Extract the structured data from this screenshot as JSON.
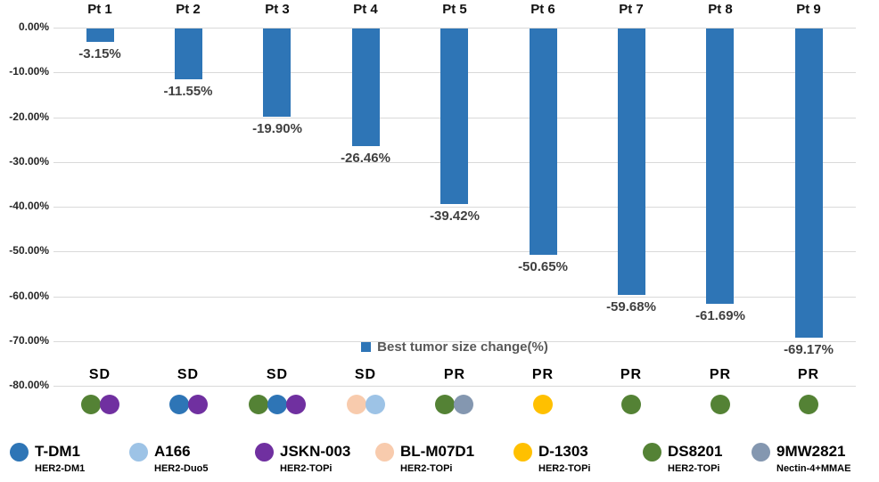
{
  "chart_data": {
    "type": "bar",
    "title": "Best tumor size change(%)",
    "bar_color": "#2E75B6",
    "gridline_color": "#d9d9d9",
    "ylim": [
      0,
      -80
    ],
    "ytick_labels": [
      "0.00%",
      "-10.00%",
      "-20.00%",
      "-30.00%",
      "-40.00%",
      "-50.00%",
      "-60.00%",
      "-70.00%",
      "-80.00%"
    ],
    "categories": [
      "Pt 1",
      "Pt 2",
      "Pt 3",
      "Pt 4",
      "Pt 5",
      "Pt 6",
      "Pt 7",
      "Pt 8",
      "Pt 9"
    ],
    "series": [
      {
        "name": "Best tumor size change(%)",
        "values": [
          -3.15,
          -11.55,
          -19.9,
          -26.46,
          -39.42,
          -50.65,
          -59.68,
          -61.69,
          -69.17
        ],
        "labels": [
          "-3.15%",
          "-11.55%",
          "-19.90%",
          "-26.46%",
          "-39.42%",
          "-50.65%",
          "-59.68%",
          "-61.69%",
          "-69.17%"
        ]
      }
    ],
    "responses": [
      "SD",
      "SD",
      "SD",
      "SD",
      "PR",
      "PR",
      "PR",
      "PR",
      "PR"
    ],
    "patient_drugs": [
      [
        "DS8201",
        "JSKN-003"
      ],
      [
        "T-DM1",
        "JSKN-003"
      ],
      [
        "DS8201",
        "T-DM1",
        "JSKN-003"
      ],
      [
        "BL-M07D1",
        "A166"
      ],
      [
        "DS8201",
        "9MW2821"
      ],
      [
        "D-1303"
      ],
      [
        "DS8201"
      ],
      [
        "DS8201"
      ],
      [
        "DS8201"
      ]
    ]
  },
  "series_legend": {
    "label": "Best tumor size change(%)",
    "marker_color": "#2E75B6"
  },
  "drug_legend": [
    {
      "name": "T-DM1",
      "payload": "HER2-DM1",
      "color": "#2E75B6"
    },
    {
      "name": "A166",
      "payload": "HER2-Duo5",
      "color": "#9DC3E6"
    },
    {
      "name": "JSKN-003",
      "payload": "HER2-TOPi",
      "color": "#7030A0"
    },
    {
      "name": "BL-M07D1",
      "payload": "HER2-TOPi",
      "color": "#F8CBAD"
    },
    {
      "name": "D-1303",
      "payload": "HER2-TOPi",
      "color": "#FFC000"
    },
    {
      "name": "DS8201",
      "payload": "HER2-TOPi",
      "color": "#548235"
    },
    {
      "name": "9MW2821",
      "payload": "Nectin-4+MMAE",
      "color": "#8497B0"
    }
  ]
}
